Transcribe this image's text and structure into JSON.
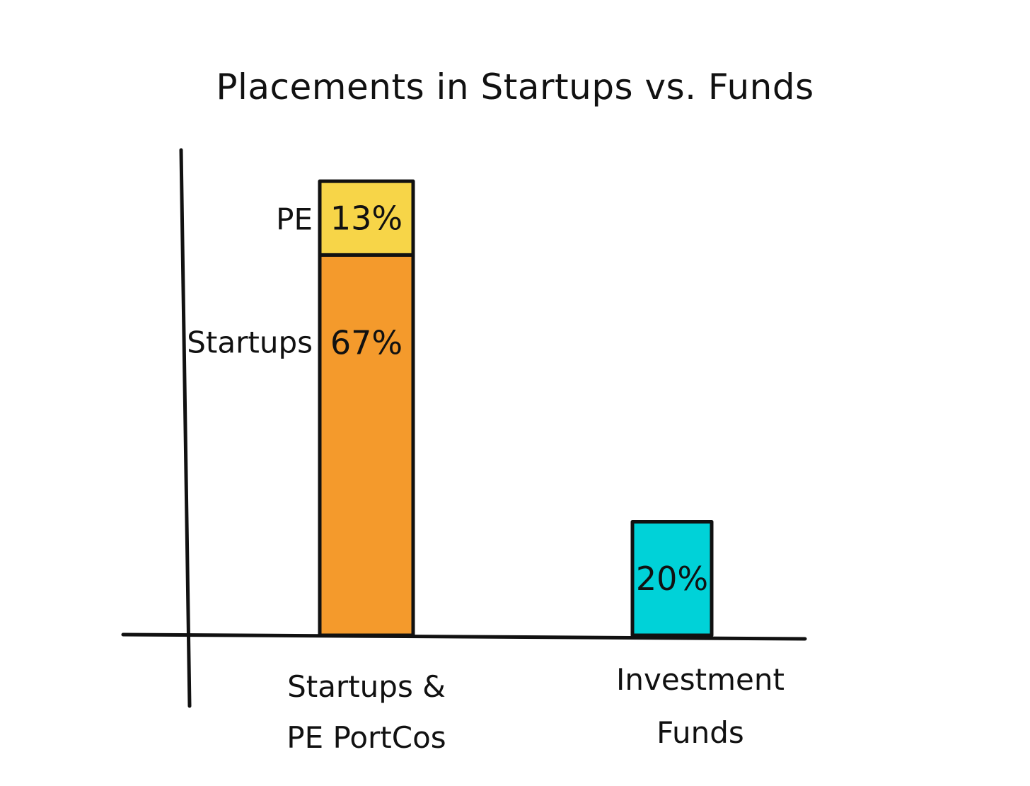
{
  "chart_data": {
    "type": "bar",
    "stacked": true,
    "title": "Placements in Startups vs. Funds",
    "xlabel": "",
    "ylabel": "",
    "ylim": [
      0,
      84
    ],
    "grid": false,
    "legend": "none",
    "categories": [
      [
        "Startups &",
        "PE PortCos"
      ],
      [
        "Investment",
        "Funds"
      ]
    ],
    "series": [
      {
        "name": "Startups",
        "values": [
          67,
          0
        ],
        "labels": [
          "67%",
          ""
        ],
        "color": "#F49A2C"
      },
      {
        "name": "PE",
        "values": [
          13,
          0
        ],
        "labels": [
          "13%",
          ""
        ],
        "color": "#F7D548"
      },
      {
        "name": "",
        "values": [
          0,
          20
        ],
        "labels": [
          "",
          "20%"
        ],
        "color": "#00D2D8"
      }
    ]
  }
}
